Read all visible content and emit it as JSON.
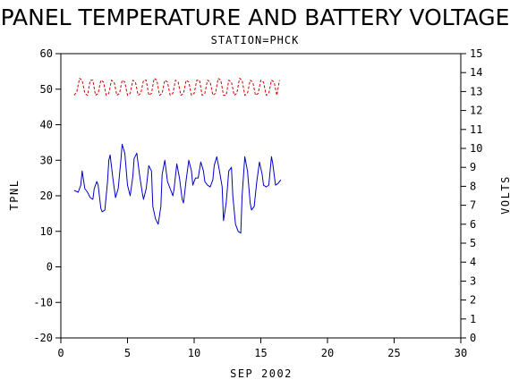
{
  "chart_data": {
    "type": "line",
    "title": "PANEL TEMPERATURE AND BATTERY VOLTAGE",
    "subtitle": "STATION=PHCK",
    "xlabel": "SEP 2002",
    "ylabel": "TPNL",
    "y2label": "VOLTS",
    "xlim": [
      0,
      30
    ],
    "ylim": [
      -20,
      60
    ],
    "y2lim": [
      0,
      15
    ],
    "x_ticks": [
      0,
      5,
      10,
      15,
      20,
      25,
      30
    ],
    "x_tick_labels": [
      "0",
      "5",
      "10",
      "15",
      "20",
      "25",
      "30"
    ],
    "y_ticks": [
      -20,
      -10,
      0,
      10,
      20,
      30,
      40,
      50,
      60
    ],
    "y_tick_labels": [
      "-20",
      "-10",
      "0",
      "10",
      "20",
      "30",
      "40",
      "50",
      "60"
    ],
    "y2_ticks": [
      0,
      1,
      2,
      3,
      4,
      5,
      6,
      7,
      8,
      9,
      10,
      11,
      12,
      13,
      14,
      15
    ],
    "y2_tick_labels": [
      "0",
      "1",
      "2",
      "3",
      "4",
      "5",
      "6",
      "7",
      "8",
      "9",
      "10",
      "11",
      "12",
      "13",
      "14",
      "15"
    ],
    "grid": false,
    "series": [
      {
        "color": "#0000cc",
        "axis": "left",
        "x": [
          1.0,
          1.3,
          1.5,
          1.6,
          1.8,
          2.0,
          2.2,
          2.4,
          2.5,
          2.7,
          2.8,
          3.0,
          3.1,
          3.3,
          3.5,
          3.6,
          3.7,
          3.9,
          4.1,
          4.3,
          4.5,
          4.6,
          4.8,
          5.0,
          5.2,
          5.4,
          5.5,
          5.7,
          5.9,
          6.1,
          6.2,
          6.4,
          6.6,
          6.8,
          6.9,
          7.1,
          7.3,
          7.5,
          7.6,
          7.8,
          8.0,
          8.2,
          8.4,
          8.5,
          8.7,
          8.9,
          9.1,
          9.2,
          9.4,
          9.6,
          9.8,
          9.9,
          10.1,
          10.3,
          10.5,
          10.7,
          10.8,
          11.0,
          11.2,
          11.4,
          11.5,
          11.7,
          11.9,
          12.1,
          12.2,
          12.4,
          12.6,
          12.8,
          12.9,
          13.1,
          13.3,
          13.5,
          13.6,
          13.8,
          14.0,
          14.2,
          14.3,
          14.5,
          14.7,
          14.9,
          15.1,
          15.2,
          15.4,
          15.6,
          15.8,
          15.9,
          16.1,
          16.3,
          16.5
        ],
        "values": [
          21.5,
          21.0,
          23.0,
          27.0,
          22.0,
          21.0,
          19.5,
          19.0,
          22.0,
          24.0,
          23.0,
          16.5,
          15.5,
          16.0,
          24.0,
          30.0,
          31.5,
          25.0,
          19.5,
          22.0,
          30.0,
          34.5,
          32.0,
          23.0,
          20.0,
          25.5,
          30.5,
          32.0,
          26.0,
          21.0,
          19.0,
          22.0,
          28.5,
          27.0,
          17.0,
          13.5,
          12.0,
          17.0,
          26.0,
          30.0,
          24.0,
          22.0,
          20.0,
          22.0,
          29.0,
          25.0,
          19.0,
          18.0,
          24.5,
          30.0,
          27.0,
          23.0,
          25.0,
          25.0,
          29.5,
          27.0,
          24.0,
          23.0,
          22.5,
          24.5,
          28.5,
          31.0,
          27.0,
          22.5,
          13.0,
          18.0,
          27.0,
          28.0,
          20.0,
          12.0,
          10.0,
          9.5,
          20.0,
          31.0,
          27.0,
          18.0,
          16.0,
          17.0,
          24.0,
          29.5,
          26.0,
          23.0,
          22.5,
          23.0,
          31.0,
          29.0,
          23.0,
          23.5,
          24.5
        ]
      },
      {
        "color": "#cc0000",
        "axis": "right",
        "dashed": true,
        "x": [
          1.0,
          1.2,
          1.4,
          1.6,
          1.8,
          2.0,
          2.2,
          2.4,
          2.6,
          2.8,
          3.0,
          3.2,
          3.4,
          3.6,
          3.8,
          4.0,
          4.2,
          4.4,
          4.6,
          4.8,
          5.0,
          5.2,
          5.4,
          5.6,
          5.8,
          6.0,
          6.2,
          6.4,
          6.6,
          6.8,
          7.0,
          7.2,
          7.4,
          7.6,
          7.8,
          8.0,
          8.2,
          8.4,
          8.6,
          8.8,
          9.0,
          9.2,
          9.4,
          9.6,
          9.8,
          10.0,
          10.2,
          10.4,
          10.6,
          10.8,
          11.0,
          11.2,
          11.4,
          11.6,
          11.8,
          12.0,
          12.2,
          12.4,
          12.6,
          12.8,
          13.0,
          13.2,
          13.4,
          13.6,
          13.8,
          14.0,
          14.2,
          14.4,
          14.6,
          14.8,
          15.0,
          15.2,
          15.4,
          15.6,
          15.8,
          16.0,
          16.2,
          16.4
        ],
        "values": [
          12.8,
          13.0,
          13.7,
          13.6,
          12.9,
          12.8,
          13.6,
          13.6,
          12.8,
          12.9,
          13.6,
          13.5,
          12.8,
          12.9,
          13.6,
          13.5,
          12.8,
          12.9,
          13.6,
          13.5,
          12.8,
          12.9,
          13.6,
          13.5,
          12.8,
          12.9,
          13.6,
          13.6,
          12.8,
          12.9,
          13.7,
          13.6,
          12.8,
          12.9,
          13.6,
          13.5,
          12.8,
          12.9,
          13.6,
          13.5,
          12.8,
          12.9,
          13.6,
          13.5,
          12.8,
          12.9,
          13.6,
          13.6,
          12.8,
          12.9,
          13.6,
          13.5,
          12.8,
          12.9,
          13.7,
          13.6,
          12.8,
          12.8,
          13.6,
          13.5,
          12.8,
          12.9,
          13.7,
          13.6,
          12.8,
          12.9,
          13.6,
          13.5,
          12.8,
          12.9,
          13.6,
          13.5,
          12.8,
          12.9,
          13.6,
          13.5,
          12.8,
          13.6
        ]
      }
    ]
  }
}
